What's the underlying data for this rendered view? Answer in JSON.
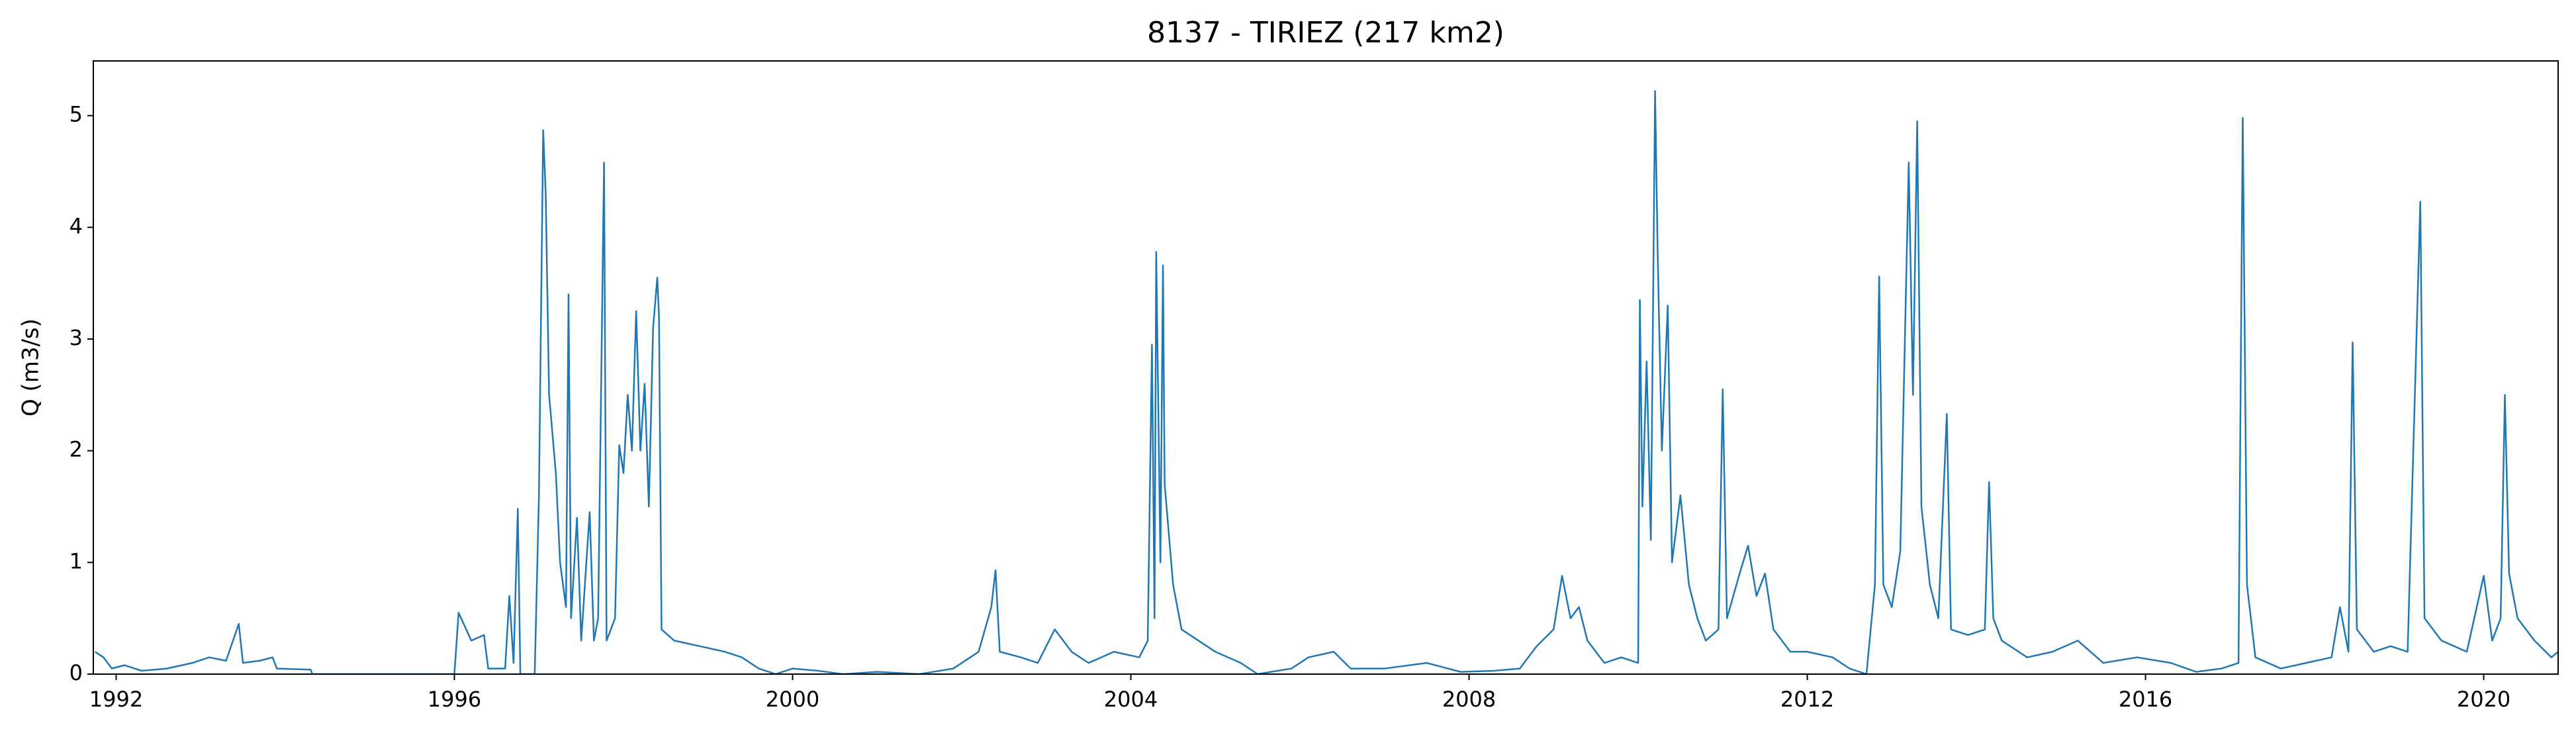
{
  "chart_data": {
    "type": "line",
    "title": "8137 - TIRIEZ (217 km2)",
    "y_label": "Q (m3/s)",
    "x": [
      1991.75,
      1991.85,
      1991.95,
      1992.1,
      1992.3,
      1992.6,
      1992.9,
      1993.1,
      1993.3,
      1993.45,
      1993.5,
      1993.7,
      1993.85,
      1993.9,
      1994.3,
      1994.32,
      1996.0,
      1996.05,
      1996.2,
      1996.35,
      1996.4,
      1996.6,
      1996.65,
      1996.7,
      1996.75,
      1996.78,
      1996.95,
      1997.0,
      1997.05,
      1997.08,
      1997.12,
      1997.2,
      1997.25,
      1997.32,
      1997.35,
      1997.38,
      1997.45,
      1997.5,
      1997.6,
      1997.65,
      1997.7,
      1997.77,
      1997.8,
      1997.9,
      1997.95,
      1998.0,
      1998.05,
      1998.1,
      1998.15,
      1998.2,
      1998.25,
      1998.3,
      1998.35,
      1998.4,
      1998.42,
      1998.45,
      1998.6,
      1998.9,
      1999.2,
      1999.4,
      1999.6,
      1999.8,
      2000.0,
      2000.3,
      2000.6,
      2001.0,
      2001.5,
      2001.9,
      2002.2,
      2002.35,
      2002.4,
      2002.45,
      2002.7,
      2002.9,
      2003.1,
      2003.3,
      2003.5,
      2003.8,
      2004.1,
      2004.2,
      2004.25,
      2004.28,
      2004.3,
      2004.35,
      2004.38,
      2004.4,
      2004.5,
      2004.6,
      2004.8,
      2005.0,
      2005.3,
      2005.5,
      2005.9,
      2006.1,
      2006.4,
      2006.6,
      2007.0,
      2007.5,
      2007.9,
      2008.3,
      2008.6,
      2008.8,
      2009.0,
      2009.1,
      2009.2,
      2009.3,
      2009.4,
      2009.6,
      2009.8,
      2010.0,
      2010.02,
      2010.05,
      2010.1,
      2010.15,
      2010.2,
      2010.23,
      2010.28,
      2010.35,
      2010.4,
      2010.5,
      2010.6,
      2010.7,
      2010.8,
      2010.95,
      2011.0,
      2011.05,
      2011.2,
      2011.3,
      2011.4,
      2011.5,
      2011.6,
      2011.8,
      2012.0,
      2012.3,
      2012.5,
      2012.7,
      2012.8,
      2012.85,
      2012.9,
      2013.0,
      2013.1,
      2013.2,
      2013.25,
      2013.3,
      2013.35,
      2013.45,
      2013.55,
      2013.65,
      2013.7,
      2013.9,
      2014.1,
      2014.15,
      2014.2,
      2014.3,
      2014.6,
      2014.9,
      2015.2,
      2015.5,
      2015.9,
      2016.3,
      2016.6,
      2016.9,
      2017.1,
      2017.15,
      2017.2,
      2017.3,
      2017.6,
      2017.9,
      2018.2,
      2018.3,
      2018.4,
      2018.45,
      2018.5,
      2018.7,
      2018.9,
      2019.1,
      2019.25,
      2019.3,
      2019.5,
      2019.8,
      2020.0,
      2020.1,
      2020.2,
      2020.25,
      2020.3,
      2020.4,
      2020.6,
      2020.8,
      2020.88
    ],
    "series": [
      {
        "color": "#1f77b4",
        "values": [
          0.2,
          0.15,
          0.05,
          0.08,
          0.03,
          0.05,
          0.1,
          0.15,
          0.12,
          0.45,
          0.1,
          0.12,
          0.15,
          0.05,
          0.04,
          0,
          0,
          0.55,
          0.3,
          0.35,
          0.05,
          0.05,
          0.7,
          0.1,
          1.48,
          0,
          0,
          1.6,
          4.87,
          4.3,
          2.5,
          1.8,
          1.0,
          0.6,
          3.4,
          0.5,
          1.4,
          0.3,
          1.45,
          0.3,
          0.5,
          4.58,
          0.3,
          0.5,
          2.05,
          1.8,
          2.5,
          2.0,
          3.25,
          2.0,
          2.6,
          1.5,
          3.1,
          3.55,
          3.2,
          0.4,
          0.3,
          0.25,
          0.2,
          0.15,
          0.05,
          0,
          0.05,
          0.03,
          0,
          0.02,
          0,
          0.05,
          0.2,
          0.6,
          0.93,
          0.2,
          0.15,
          0.1,
          0.4,
          0.2,
          0.1,
          0.2,
          0.15,
          0.3,
          2.95,
          0.5,
          3.78,
          1.0,
          3.66,
          1.7,
          0.8,
          0.4,
          0.3,
          0.2,
          0.1,
          0,
          0.05,
          0.15,
          0.2,
          0.05,
          0.05,
          0.1,
          0.02,
          0.03,
          0.05,
          0.25,
          0.4,
          0.88,
          0.5,
          0.6,
          0.3,
          0.1,
          0.15,
          0.1,
          3.35,
          1.5,
          2.8,
          1.2,
          5.22,
          3.8,
          2.0,
          3.3,
          1.0,
          1.6,
          0.8,
          0.5,
          0.3,
          0.4,
          2.55,
          0.5,
          0.9,
          1.15,
          0.7,
          0.9,
          0.4,
          0.2,
          0.2,
          0.15,
          0.05,
          0,
          0.8,
          3.56,
          0.8,
          0.6,
          1.1,
          4.58,
          2.5,
          4.95,
          1.5,
          0.8,
          0.5,
          2.33,
          0.4,
          0.35,
          0.4,
          1.72,
          0.5,
          0.3,
          0.15,
          0.2,
          0.3,
          0.1,
          0.15,
          0.1,
          0.02,
          0.05,
          0.1,
          4.98,
          0.8,
          0.15,
          0.05,
          0.1,
          0.15,
          0.6,
          0.2,
          2.97,
          0.4,
          0.2,
          0.25,
          0.2,
          4.23,
          0.5,
          0.3,
          0.2,
          0.88,
          0.3,
          0.5,
          2.5,
          0.9,
          0.5,
          0.3,
          0.15,
          0.2
        ]
      }
    ],
    "xlim": [
      1991.73,
      2020.88
    ],
    "xticks": [
      1992,
      1996,
      2000,
      2004,
      2008,
      2012,
      2016,
      2020
    ],
    "ylim": [
      0,
      5.49
    ],
    "yticks": [
      0,
      1,
      2,
      3,
      4,
      5
    ],
    "grid": false
  }
}
